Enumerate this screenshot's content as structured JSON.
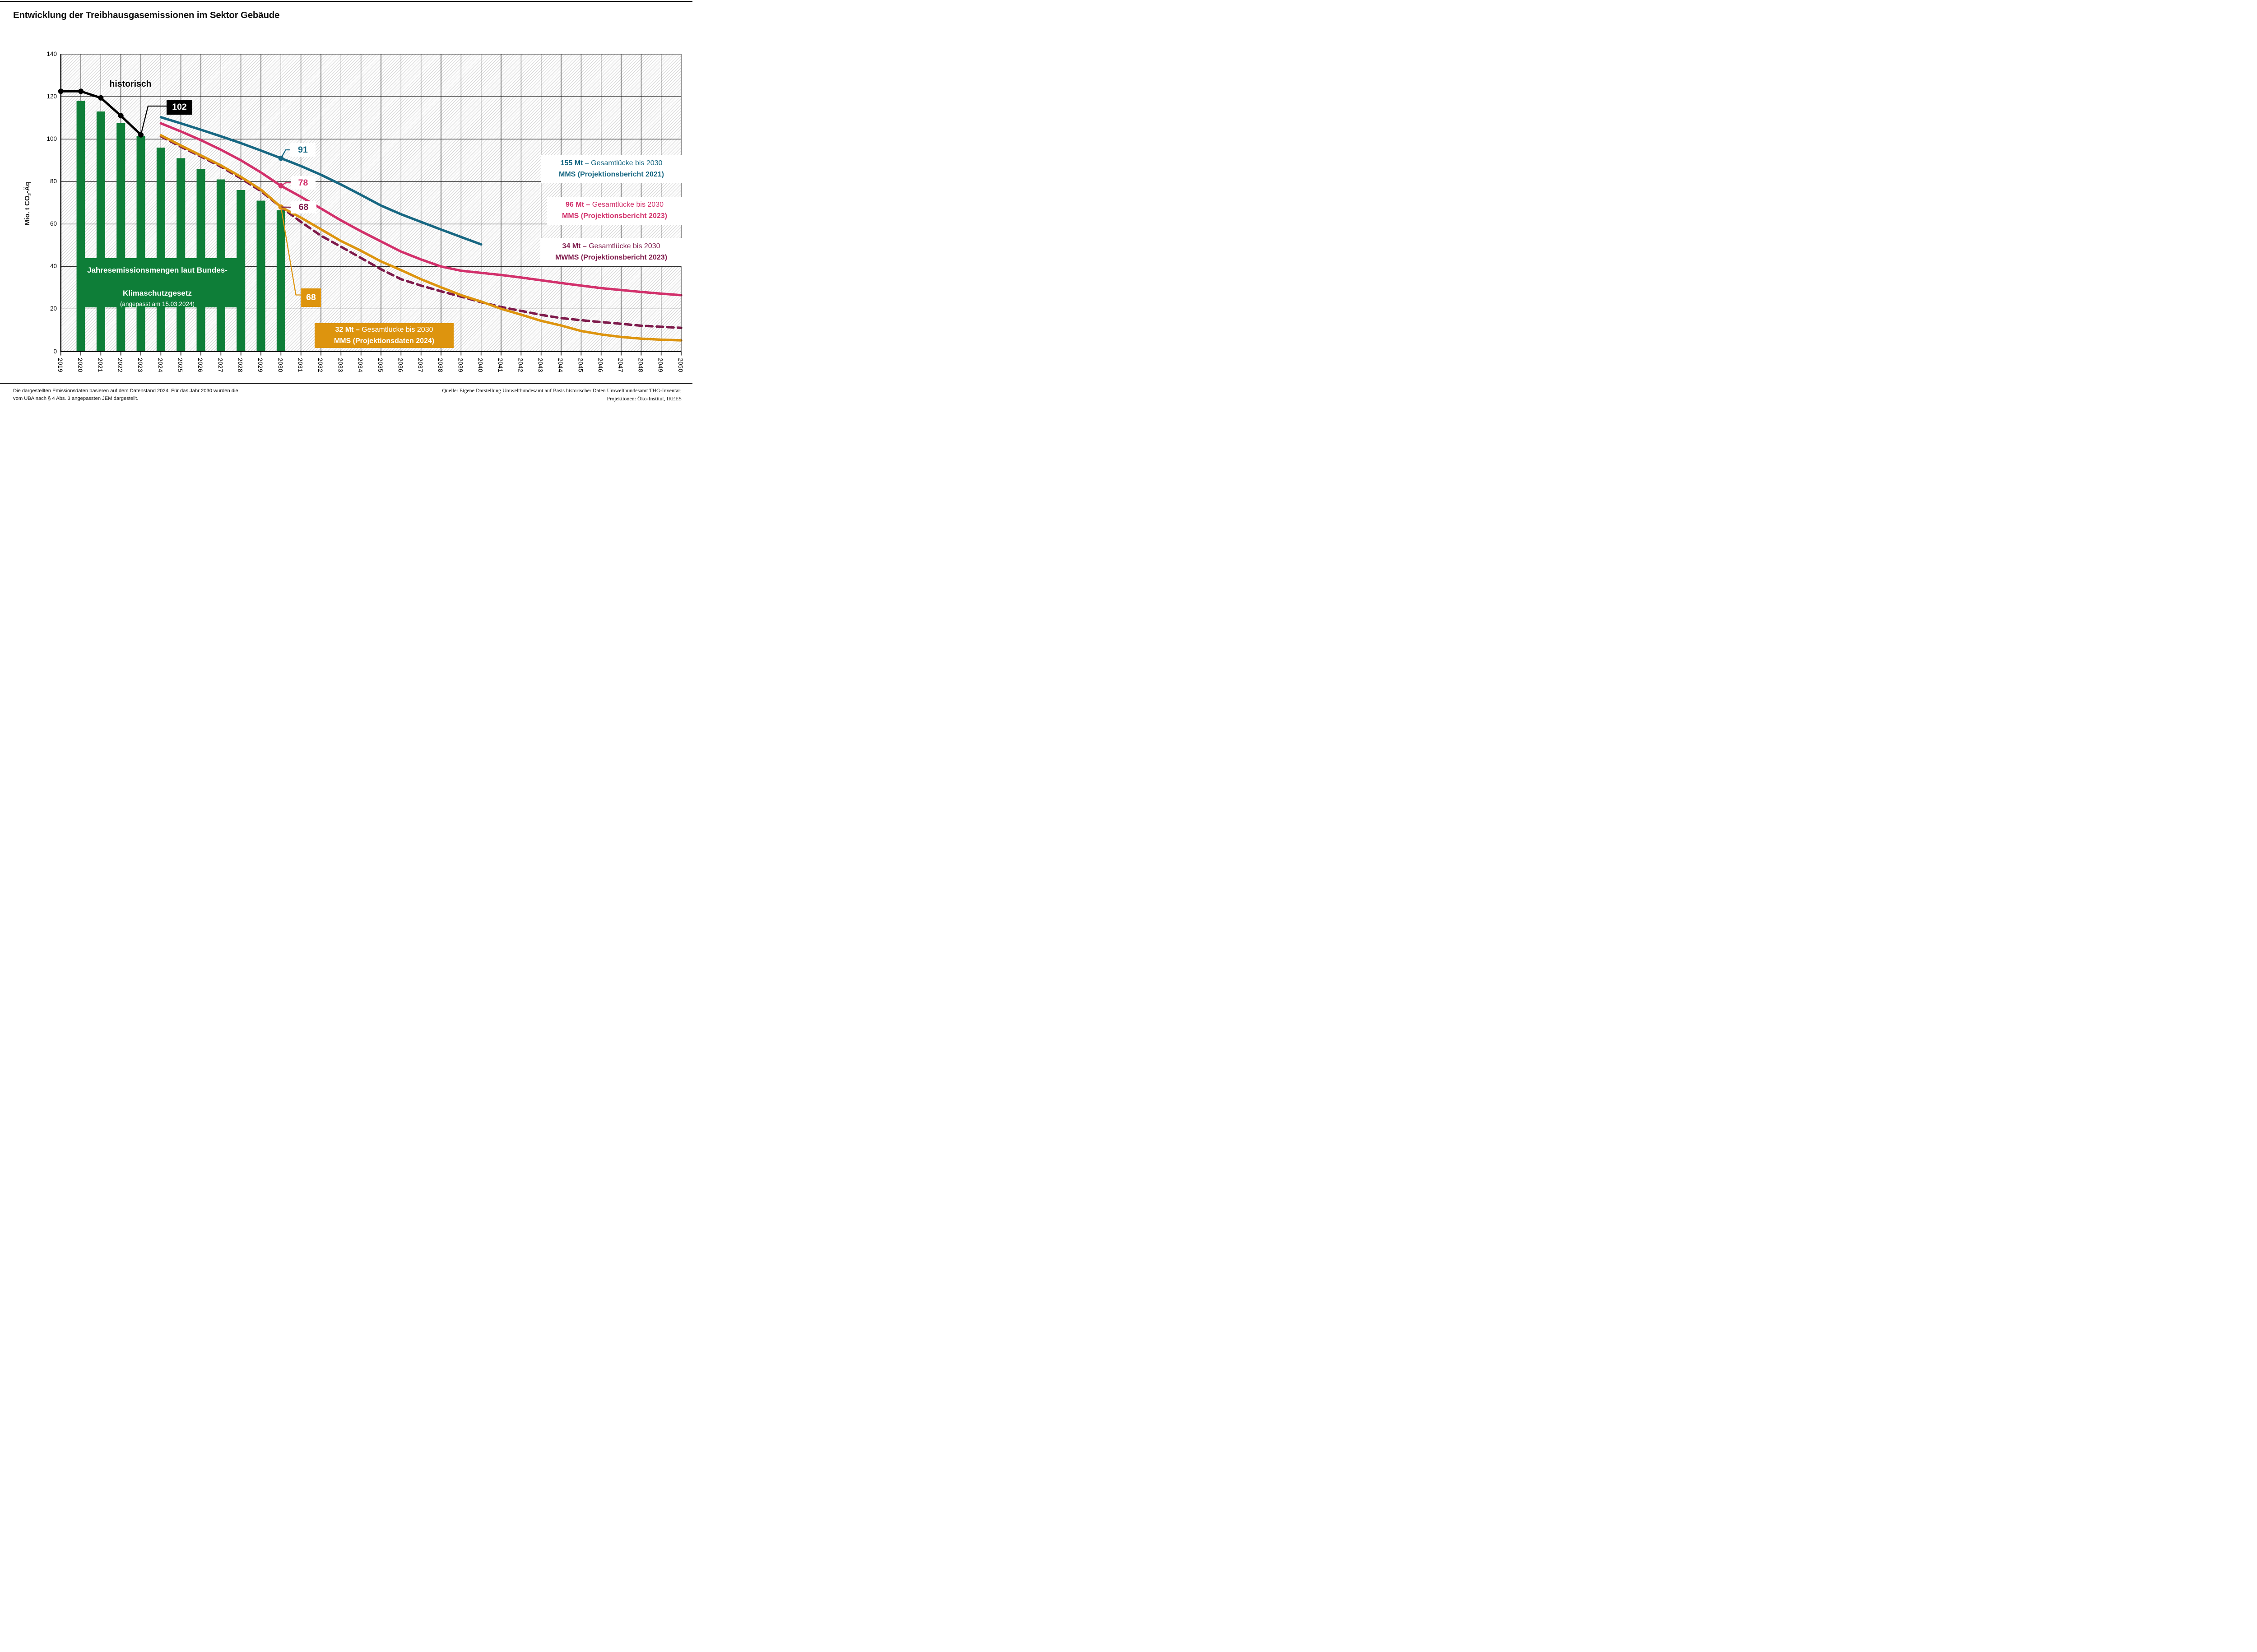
{
  "title": "Entwicklung der Treibhausgasemissionen im Sektor Gebäude",
  "colors": {
    "historical": "#000000",
    "ksg_bars": "#0E7E38",
    "pb2021": "#176782",
    "pb2023_mms": "#D2306B",
    "pb2023_mwms": "#7E1A4B",
    "proj2024_mms": "#DD940E",
    "grid": "#111111",
    "hatch": "#d8d8d8"
  },
  "y_axis": {
    "title_prefix": "Mio. t CO",
    "title_sub": "2",
    "title_suffix": "-Äq",
    "ticks": [
      0,
      20,
      40,
      60,
      80,
      100,
      120,
      140
    ]
  },
  "chart_data": {
    "type": "combo_bar_line",
    "title": "Entwicklung der Treibhausgasemissionen im Sektor Gebäude",
    "ylabel": "Mio. t CO2-Äq",
    "ylim": [
      0,
      140
    ],
    "grid": "on",
    "x_years": [
      2019,
      2020,
      2021,
      2022,
      2023,
      2024,
      2025,
      2026,
      2027,
      2028,
      2029,
      2030,
      2031,
      2032,
      2033,
      2034,
      2035,
      2036,
      2037,
      2038,
      2039,
      2040,
      2041,
      2042,
      2043,
      2044,
      2045,
      2046,
      2047,
      2048,
      2049,
      2050
    ],
    "series": [
      {
        "name": "historisch",
        "type": "line",
        "color": "#000000",
        "start_year": 2019,
        "markers": "all",
        "values": [
          122.5,
          122.5,
          119.4,
          111,
          102
        ]
      },
      {
        "name": "Jahresemissionsmengen laut Bundes-Klimaschutzgesetz (angepasst am 15.03.2024)",
        "type": "bar",
        "color": "#0E7E38",
        "start_year": 2020,
        "values": [
          118,
          113,
          107.5,
          101.5,
          96,
          91,
          86,
          81,
          76,
          71,
          66.5
        ]
      },
      {
        "name": "MMS (Projektionsbericht 2021)",
        "type": "line",
        "color": "#176782",
        "start_year": 2024,
        "marker_year": 2030,
        "marker_value": 91,
        "values": [
          110.3,
          107.4,
          104.4,
          101.3,
          98.1,
          94.6,
          91,
          87.3,
          83.2,
          78.6,
          73.7,
          68.7,
          64.6,
          61,
          57.4,
          53.9,
          50.4
        ]
      },
      {
        "name": "MMS (Projektionsbericht 2023)",
        "type": "line",
        "color": "#D2306B",
        "start_year": 2024,
        "marker_year": 2030,
        "marker_value": 78,
        "values": [
          107.4,
          103.6,
          99.5,
          95,
          90,
          84.3,
          78,
          72.8,
          67.3,
          61.7,
          56.6,
          51.8,
          47,
          43.3,
          40,
          38,
          37,
          36,
          34.8,
          33.5,
          32.2,
          31,
          29.8,
          28.9,
          28,
          27.2,
          26.5
        ]
      },
      {
        "name": "MWMS (Projektionsbericht 2023)",
        "type": "line",
        "color": "#7E1A4B",
        "dashed": true,
        "start_year": 2024,
        "values": [
          101.3,
          96.4,
          91.8,
          87,
          81.5,
          75.5,
          68,
          61,
          54.5,
          49.3,
          44,
          38.7,
          34,
          31,
          28.3,
          25.8,
          23.2,
          20.9,
          19.1,
          17.2,
          15.7,
          14.7,
          13.8,
          13,
          12.1,
          11.6,
          11.1
        ]
      },
      {
        "name": "MMS (Projektionsdaten 2024)",
        "type": "line",
        "color": "#DD940E",
        "start_year": 2024,
        "marker_year": 2030,
        "marker_value": 68,
        "values": [
          101.8,
          97,
          92.3,
          87.6,
          82.2,
          76.2,
          68,
          63,
          57.5,
          52,
          47.4,
          42.4,
          38.3,
          34,
          30.2,
          26.5,
          23.5,
          20.1,
          17.3,
          14.4,
          12.2,
          9.6,
          8,
          6.8,
          6,
          5.5,
          5.2
        ]
      }
    ]
  },
  "callouts": {
    "historisch": "historisch",
    "hist_2023": "102",
    "pb2021_2030": "91",
    "mms2023_2030": "78",
    "mwms2023_2030": "68",
    "mms2024_2030": "68"
  },
  "bar_box": {
    "line1": "Jahresemissionsmengen laut Bundes-",
    "line2": "Klimaschutzgesetz",
    "line3": "(angepasst am 15.03.2024)"
  },
  "gap_boxes": [
    {
      "amount": "155 Mt –",
      "text": " Gesamtlücke bis 2030",
      "line2": "MMS (Projektionsbericht 2021)"
    },
    {
      "amount": "96 Mt –",
      "text": " Gesamtlücke bis 2030",
      "line2": "MMS (Projektionsbericht 2023)"
    },
    {
      "amount": "34 Mt –",
      "text": " Gesamtlücke bis 2030",
      "line2": "MWMS (Projektionsbericht 2023)"
    },
    {
      "amount": "32 Mt –",
      "text": " Gesamtlücke bis 2030",
      "line2": "MMS (Projektionsdaten 2024)"
    }
  ],
  "footnote": {
    "line1": "Die dargestellten Emissionsdaten basieren auf dem Datenstand 2024. Für das Jahr 2030 wurden die",
    "line2": "vom UBA nach § 4 Abs. 3 angepassten JEM dargestellt."
  },
  "source": {
    "line1": "Quelle: Eigene Darstellung Umweltbundesamt auf Basis historischer Daten Umweltbundesamt THG-Inventar;",
    "line2": "Projektionen: Öko-Institut, IREES"
  }
}
